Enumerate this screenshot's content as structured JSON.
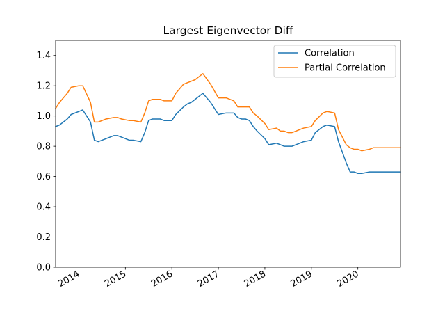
{
  "chart_data": {
    "type": "line",
    "title": "Largest Eigenvector Diff",
    "xlabel": "",
    "ylabel": "",
    "xlim": [
      "2013-07-01",
      "2020-12-01"
    ],
    "ylim": [
      0,
      1.5
    ],
    "yticks": [
      0.0,
      0.2,
      0.4,
      0.6,
      0.8,
      1.0,
      1.2,
      1.4
    ],
    "ytick_labels": [
      "0.0",
      "0.2",
      "0.4",
      "0.6",
      "0.8",
      "1.0",
      "1.2",
      "1.4"
    ],
    "xticks": [
      "2014",
      "2015",
      "2016",
      "2017",
      "2018",
      "2019",
      "2020"
    ],
    "grid": false,
    "legend": {
      "position": "top-right",
      "entries": [
        "Correlation",
        "Partial Correlation"
      ]
    },
    "x": [
      "2013-07",
      "2013-08",
      "2013-10",
      "2013-11",
      "2014-01",
      "2014-02",
      "2014-04",
      "2014-05",
      "2014-06",
      "2014-07",
      "2014-08",
      "2014-10",
      "2014-11",
      "2014-12",
      "2015-02",
      "2015-03",
      "2015-05",
      "2015-06",
      "2015-07",
      "2015-08",
      "2015-09",
      "2015-10",
      "2015-11",
      "2016-01",
      "2016-02",
      "2016-04",
      "2016-05",
      "2016-06",
      "2016-07",
      "2016-08",
      "2016-09",
      "2016-11",
      "2017-01",
      "2017-03",
      "2017-05",
      "2017-06",
      "2017-07",
      "2017-08",
      "2017-09",
      "2017-10",
      "2017-11",
      "2018-01",
      "2018-02",
      "2018-04",
      "2018-05",
      "2018-06",
      "2018-07",
      "2018-08",
      "2018-09",
      "2018-10",
      "2018-11",
      "2019-01",
      "2019-02",
      "2019-04",
      "2019-05",
      "2019-07",
      "2019-08",
      "2019-10",
      "2019-11",
      "2019-12",
      "2020-01",
      "2020-02",
      "2020-04",
      "2020-05",
      "2020-06",
      "2020-07",
      "2020-09",
      "2020-10",
      "2020-11",
      "2020-12"
    ],
    "series": [
      {
        "name": "Correlation",
        "color": "#1f77b4",
        "values": [
          0.93,
          0.94,
          0.98,
          1.01,
          1.03,
          1.04,
          0.96,
          0.84,
          0.83,
          0.84,
          0.85,
          0.87,
          0.87,
          0.86,
          0.84,
          0.84,
          0.83,
          0.89,
          0.97,
          0.98,
          0.98,
          0.98,
          0.97,
          0.97,
          1.01,
          1.06,
          1.08,
          1.09,
          1.11,
          1.13,
          1.15,
          1.09,
          1.01,
          1.02,
          1.02,
          0.99,
          0.98,
          0.98,
          0.97,
          0.93,
          0.9,
          0.85,
          0.81,
          0.82,
          0.81,
          0.8,
          0.8,
          0.8,
          0.81,
          0.82,
          0.83,
          0.84,
          0.89,
          0.93,
          0.94,
          0.93,
          0.83,
          0.69,
          0.63,
          0.63,
          0.62,
          0.62,
          0.63,
          0.63,
          0.63,
          0.63,
          0.63,
          0.63,
          0.63,
          0.63
        ]
      },
      {
        "name": "Partial Correlation",
        "color": "#ff7f0e",
        "values": [
          1.05,
          1.09,
          1.15,
          1.19,
          1.2,
          1.2,
          1.09,
          0.96,
          0.96,
          0.97,
          0.98,
          0.99,
          0.99,
          0.98,
          0.97,
          0.97,
          0.96,
          1.02,
          1.1,
          1.11,
          1.11,
          1.11,
          1.1,
          1.1,
          1.15,
          1.21,
          1.22,
          1.23,
          1.24,
          1.26,
          1.28,
          1.21,
          1.12,
          1.12,
          1.1,
          1.06,
          1.06,
          1.06,
          1.06,
          1.02,
          1.0,
          0.95,
          0.91,
          0.92,
          0.9,
          0.9,
          0.89,
          0.89,
          0.9,
          0.91,
          0.92,
          0.93,
          0.97,
          1.02,
          1.03,
          1.02,
          0.91,
          0.81,
          0.79,
          0.78,
          0.78,
          0.77,
          0.78,
          0.79,
          0.79,
          0.79,
          0.79,
          0.79,
          0.79,
          0.79
        ]
      }
    ]
  }
}
